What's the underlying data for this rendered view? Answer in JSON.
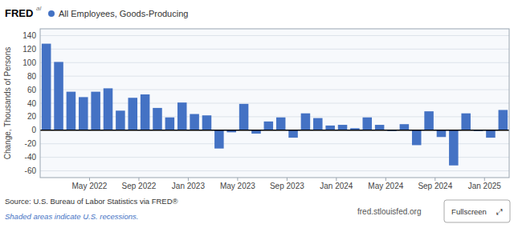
{
  "chart_data": {
    "type": "bar",
    "title": "All Employees, Goods-Producing",
    "ylabel": "Change, Thousands of Persons",
    "brand": "FRED",
    "brand_suffix": "al",
    "source": "Source: U.S. Bureau of Labor Statistics via FRED®",
    "note": "Shaded areas indicate U.S. recessions.",
    "website": "fred.stlouisfed.org",
    "button": "Fullscreen",
    "button_icon": "⤢",
    "categories": [
      null,
      null,
      null,
      null,
      "May 2022",
      null,
      null,
      null,
      "Sep 2022",
      null,
      null,
      null,
      "Jan 2023",
      null,
      null,
      null,
      "May 2023",
      null,
      null,
      null,
      "Sep 2023",
      null,
      null,
      null,
      "Jan 2024",
      null,
      null,
      null,
      "May 2024",
      null,
      null,
      null,
      "Sep 2024",
      null,
      null,
      null,
      "Jan 2025",
      null
    ],
    "values": [
      128,
      101,
      57,
      49,
      57,
      62,
      29,
      48,
      53,
      33,
      19,
      41,
      24,
      22,
      -27,
      -3,
      39,
      -5,
      13,
      19,
      -11,
      25,
      18,
      7,
      8,
      3,
      19,
      8,
      -1,
      9,
      -22,
      28,
      -10,
      -52,
      25,
      -1,
      -11,
      30
    ],
    "color": "#4472c4",
    "ylim": [
      -70,
      150
    ],
    "yticks": [
      -60,
      -40,
      -20,
      0,
      20,
      40,
      60,
      80,
      100,
      120,
      140
    ],
    "grid": true
  }
}
